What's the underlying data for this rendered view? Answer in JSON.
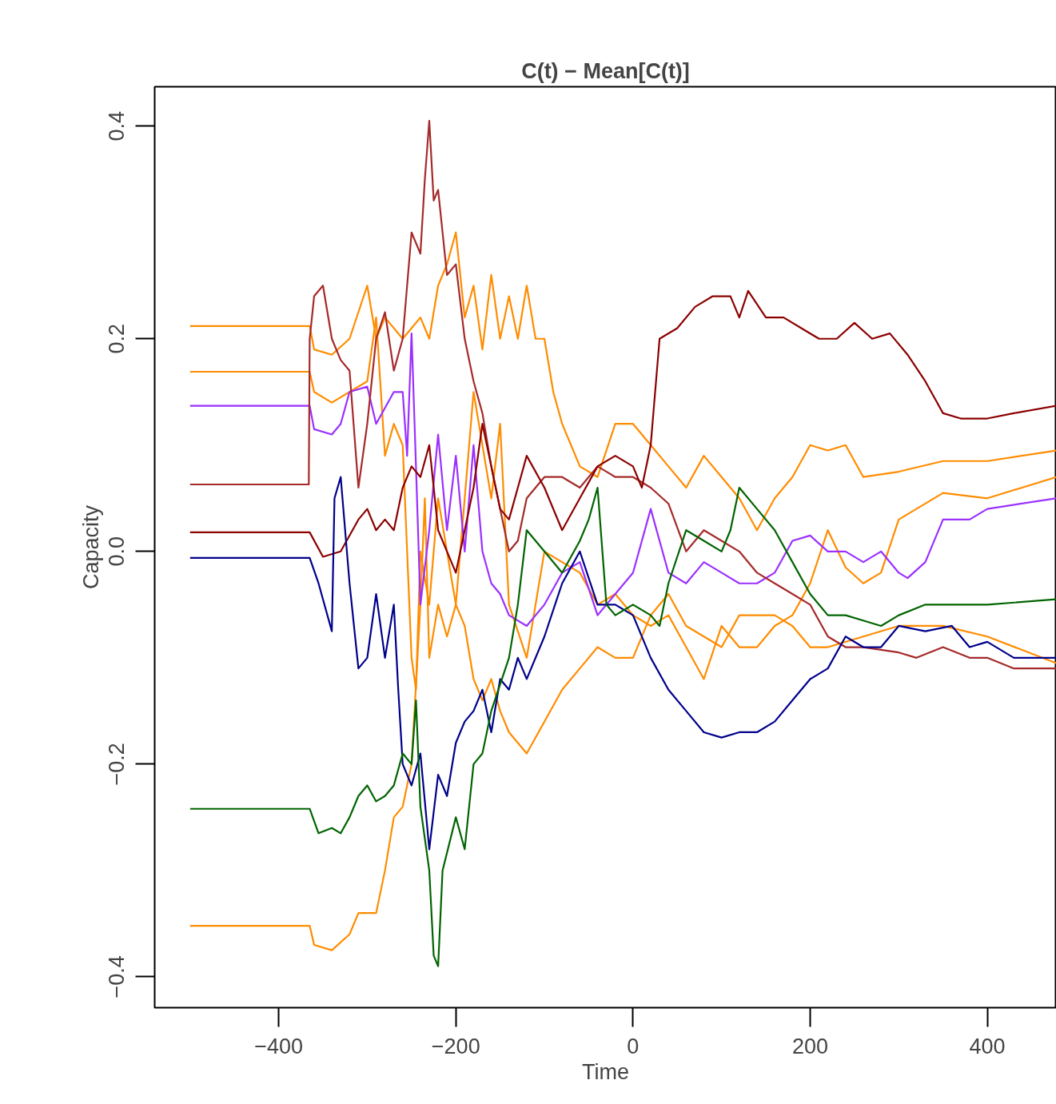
{
  "chart_data": {
    "type": "line",
    "title": "C(t) − Mean[C(t)]",
    "xlabel": "Time",
    "ylabel": "Capacity",
    "xlim": [
      -540,
      478
    ],
    "ylim": [
      -0.429,
      0.437
    ],
    "xticks": [
      {
        "value": -400,
        "label": "−400"
      },
      {
        "value": -200,
        "label": "−200"
      },
      0,
      200,
      400
    ],
    "yticks": [
      {
        "value": -0.4,
        "label": "−0.4"
      },
      {
        "value": -0.2,
        "label": "−0.2"
      },
      {
        "value": 0,
        "label": "0.0"
      },
      {
        "value": 0.2,
        "label": "0.2"
      },
      {
        "value": 0.4,
        "label": "0.4"
      }
    ],
    "grid": false,
    "line_style": "solid",
    "marker": "none",
    "series": [
      {
        "color": "#ff8c00",
        "x": [
          -500,
          -365,
          -360,
          -340,
          -320,
          -300,
          -290,
          -280,
          -260,
          -250,
          -240,
          -230,
          -220,
          -210,
          -200,
          -190,
          -180,
          -170,
          -160,
          -150,
          -140,
          -130,
          -120,
          -110,
          -100,
          -90,
          -80,
          -70,
          -60,
          -40,
          -20,
          0,
          20,
          40,
          60,
          80,
          100,
          120,
          140,
          160,
          180,
          200,
          220,
          240,
          260,
          300,
          350,
          400,
          478
        ],
        "values": [
          0.212,
          0.212,
          0.19,
          0.185,
          0.2,
          0.25,
          0.2,
          0.22,
          0.2,
          0.21,
          0.22,
          0.2,
          0.25,
          0.27,
          0.3,
          0.22,
          0.25,
          0.19,
          0.26,
          0.2,
          0.24,
          0.2,
          0.25,
          0.2,
          0.2,
          0.15,
          0.12,
          0.1,
          0.08,
          0.07,
          0.12,
          0.12,
          0.1,
          0.08,
          0.06,
          0.09,
          0.07,
          0.05,
          0.02,
          0.05,
          0.07,
          0.1,
          0.095,
          0.1,
          0.07,
          0.075,
          0.085,
          0.085,
          0.095
        ]
      },
      {
        "color": "#ff8c00",
        "x": [
          -500,
          -365,
          -360,
          -340,
          -320,
          -300,
          -290,
          -280,
          -270,
          -260,
          -250,
          -245,
          -240,
          -230,
          -220,
          -210,
          -200,
          -190,
          -180,
          -170,
          -160,
          -150,
          -140,
          -120,
          -100,
          -80,
          -60,
          -40,
          -20,
          0,
          20,
          40,
          60,
          80,
          100,
          120,
          140,
          160,
          180,
          200,
          220,
          240,
          260,
          280,
          300,
          350,
          400,
          478
        ],
        "values": [
          0.169,
          0.169,
          0.15,
          0.14,
          0.15,
          0.16,
          0.22,
          0.09,
          0.12,
          0.1,
          -0.1,
          -0.13,
          0.0,
          -0.05,
          0.05,
          0.0,
          -0.05,
          0.05,
          0.15,
          0.1,
          0.05,
          0.12,
          -0.05,
          -0.1,
          0.0,
          -0.01,
          -0.02,
          -0.05,
          -0.04,
          -0.06,
          -0.07,
          -0.06,
          -0.09,
          -0.12,
          -0.07,
          -0.09,
          -0.09,
          -0.07,
          -0.06,
          -0.03,
          0.02,
          -0.015,
          -0.03,
          -0.02,
          0.03,
          0.055,
          0.05,
          0.07
        ]
      },
      {
        "color": "#ff8c00",
        "x": [
          -500,
          -365,
          -360,
          -340,
          -320,
          -310,
          -300,
          -290,
          -280,
          -270,
          -260,
          -250,
          -240,
          -235,
          -230,
          -220,
          -210,
          -200,
          -190,
          -180,
          -170,
          -160,
          -150,
          -140,
          -120,
          -100,
          -80,
          -60,
          -40,
          -20,
          0,
          20,
          40,
          60,
          80,
          100,
          120,
          140,
          160,
          180,
          200,
          220,
          260,
          300,
          350,
          400,
          478
        ],
        "values": [
          -0.352,
          -0.352,
          -0.37,
          -0.375,
          -0.36,
          -0.34,
          -0.34,
          -0.34,
          -0.3,
          -0.25,
          -0.24,
          -0.2,
          -0.05,
          0.05,
          -0.1,
          -0.05,
          -0.08,
          -0.05,
          -0.07,
          -0.12,
          -0.14,
          -0.12,
          -0.15,
          -0.17,
          -0.19,
          -0.16,
          -0.13,
          -0.11,
          -0.09,
          -0.1,
          -0.1,
          -0.06,
          -0.04,
          -0.07,
          -0.08,
          -0.09,
          -0.06,
          -0.06,
          -0.06,
          -0.07,
          -0.09,
          -0.09,
          -0.08,
          -0.07,
          -0.07,
          -0.08,
          -0.105
        ]
      },
      {
        "color": "#9b30ff",
        "x": [
          -500,
          -365,
          -360,
          -340,
          -330,
          -320,
          -300,
          -290,
          -270,
          -260,
          -255,
          -250,
          -245,
          -240,
          -230,
          -220,
          -210,
          -200,
          -190,
          -180,
          -170,
          -160,
          -150,
          -140,
          -120,
          -100,
          -80,
          -60,
          -40,
          -20,
          0,
          20,
          40,
          60,
          80,
          100,
          120,
          140,
          160,
          180,
          200,
          220,
          240,
          260,
          280,
          300,
          310,
          330,
          350,
          380,
          400,
          478
        ],
        "values": [
          0.137,
          0.137,
          0.115,
          0.11,
          0.12,
          0.15,
          0.155,
          0.12,
          0.15,
          0.15,
          0.09,
          0.205,
          0.08,
          -0.05,
          0.02,
          0.11,
          0.02,
          0.09,
          0.0,
          0.1,
          0.0,
          -0.03,
          -0.04,
          -0.06,
          -0.07,
          -0.05,
          -0.02,
          -0.01,
          -0.06,
          -0.04,
          -0.02,
          0.04,
          -0.02,
          -0.03,
          -0.01,
          -0.02,
          -0.03,
          -0.03,
          -0.02,
          0.01,
          0.015,
          0.0,
          0.0,
          -0.01,
          0.0,
          -0.02,
          -0.025,
          -0.01,
          0.03,
          0.03,
          0.04,
          0.05
        ]
      },
      {
        "color": "#a52a2a",
        "x": [
          -500,
          -366,
          -365,
          -360,
          -350,
          -340,
          -330,
          -320,
          -310,
          -300,
          -290,
          -280,
          -270,
          -260,
          -250,
          -240,
          -235,
          -230,
          -225,
          -220,
          -210,
          -200,
          -190,
          -180,
          -170,
          -160,
          -150,
          -140,
          -130,
          -120,
          -100,
          -80,
          -60,
          -40,
          -20,
          0,
          20,
          40,
          60,
          80,
          100,
          120,
          140,
          160,
          180,
          200,
          220,
          240,
          260,
          300,
          320,
          350,
          380,
          400,
          430,
          478
        ],
        "values": [
          0.063,
          0.063,
          0.2,
          0.24,
          0.25,
          0.2,
          0.18,
          0.17,
          0.06,
          0.12,
          0.2,
          0.225,
          0.17,
          0.2,
          0.3,
          0.28,
          0.35,
          0.405,
          0.33,
          0.34,
          0.26,
          0.27,
          0.2,
          0.16,
          0.13,
          0.08,
          0.04,
          0.0,
          0.01,
          0.05,
          0.07,
          0.07,
          0.06,
          0.08,
          0.07,
          0.07,
          0.06,
          0.045,
          0.0,
          0.02,
          0.01,
          0.0,
          -0.02,
          -0.03,
          -0.04,
          -0.05,
          -0.08,
          -0.09,
          -0.09,
          -0.095,
          -0.1,
          -0.09,
          -0.1,
          -0.1,
          -0.11,
          -0.11
        ]
      },
      {
        "color": "#8b0000",
        "x": [
          -500,
          -365,
          -350,
          -330,
          -310,
          -300,
          -290,
          -280,
          -270,
          -260,
          -250,
          -240,
          -230,
          -220,
          -210,
          -200,
          -190,
          -180,
          -170,
          -160,
          -150,
          -140,
          -130,
          -120,
          -100,
          -80,
          -60,
          -40,
          -20,
          0,
          10,
          20,
          30,
          50,
          70,
          90,
          110,
          120,
          130,
          150,
          170,
          190,
          210,
          230,
          250,
          270,
          290,
          310,
          330,
          350,
          370,
          400,
          430,
          478
        ],
        "values": [
          0.018,
          0.018,
          -0.005,
          0.0,
          0.03,
          0.04,
          0.02,
          0.03,
          0.02,
          0.06,
          0.08,
          0.07,
          0.1,
          0.02,
          0.0,
          -0.02,
          0.02,
          0.06,
          0.12,
          0.08,
          0.04,
          0.03,
          0.06,
          0.09,
          0.06,
          0.02,
          0.05,
          0.08,
          0.09,
          0.08,
          0.06,
          0.1,
          0.2,
          0.21,
          0.23,
          0.24,
          0.24,
          0.22,
          0.245,
          0.22,
          0.22,
          0.21,
          0.2,
          0.2,
          0.215,
          0.2,
          0.205,
          0.185,
          0.16,
          0.13,
          0.125,
          0.125,
          0.13,
          0.137
        ]
      },
      {
        "color": "#00008b",
        "x": [
          -500,
          -365,
          -355,
          -340,
          -337,
          -330,
          -320,
          -310,
          -300,
          -290,
          -280,
          -270,
          -265,
          -260,
          -250,
          -240,
          -230,
          -220,
          -210,
          -200,
          -190,
          -180,
          -170,
          -160,
          -150,
          -140,
          -130,
          -120,
          -100,
          -80,
          -60,
          -40,
          -20,
          0,
          20,
          40,
          60,
          80,
          100,
          120,
          140,
          160,
          180,
          200,
          220,
          240,
          260,
          280,
          300,
          330,
          360,
          380,
          400,
          430,
          478
        ],
        "values": [
          -0.006,
          -0.006,
          -0.03,
          -0.075,
          0.05,
          0.07,
          -0.03,
          -0.11,
          -0.1,
          -0.04,
          -0.1,
          -0.05,
          -0.13,
          -0.2,
          -0.22,
          -0.19,
          -0.28,
          -0.21,
          -0.23,
          -0.18,
          -0.16,
          -0.15,
          -0.13,
          -0.17,
          -0.12,
          -0.13,
          -0.1,
          -0.12,
          -0.08,
          -0.03,
          0.0,
          -0.05,
          -0.05,
          -0.06,
          -0.1,
          -0.13,
          -0.15,
          -0.17,
          -0.175,
          -0.17,
          -0.17,
          -0.16,
          -0.14,
          -0.12,
          -0.11,
          -0.08,
          -0.09,
          -0.09,
          -0.07,
          -0.075,
          -0.07,
          -0.09,
          -0.085,
          -0.1,
          -0.1
        ]
      },
      {
        "color": "#006400",
        "x": [
          -500,
          -365,
          -355,
          -340,
          -330,
          -320,
          -310,
          -300,
          -290,
          -280,
          -270,
          -260,
          -250,
          -245,
          -240,
          -230,
          -225,
          -220,
          -215,
          -200,
          -190,
          -180,
          -170,
          -160,
          -140,
          -130,
          -120,
          -100,
          -80,
          -60,
          -50,
          -40,
          -30,
          -20,
          0,
          20,
          30,
          40,
          60,
          80,
          100,
          110,
          120,
          140,
          160,
          180,
          200,
          220,
          240,
          260,
          280,
          300,
          330,
          360,
          400,
          478
        ],
        "values": [
          -0.242,
          -0.242,
          -0.265,
          -0.26,
          -0.265,
          -0.25,
          -0.23,
          -0.22,
          -0.235,
          -0.23,
          -0.22,
          -0.19,
          -0.2,
          -0.14,
          -0.24,
          -0.3,
          -0.38,
          -0.39,
          -0.3,
          -0.25,
          -0.28,
          -0.2,
          -0.19,
          -0.15,
          -0.1,
          -0.05,
          0.02,
          0.0,
          -0.02,
          0.01,
          0.03,
          0.06,
          -0.05,
          -0.06,
          -0.05,
          -0.06,
          -0.07,
          -0.03,
          0.02,
          0.01,
          0.0,
          0.02,
          0.06,
          0.04,
          0.02,
          -0.01,
          -0.04,
          -0.06,
          -0.06,
          -0.065,
          -0.07,
          -0.06,
          -0.05,
          -0.05,
          -0.05,
          -0.045
        ]
      }
    ]
  }
}
